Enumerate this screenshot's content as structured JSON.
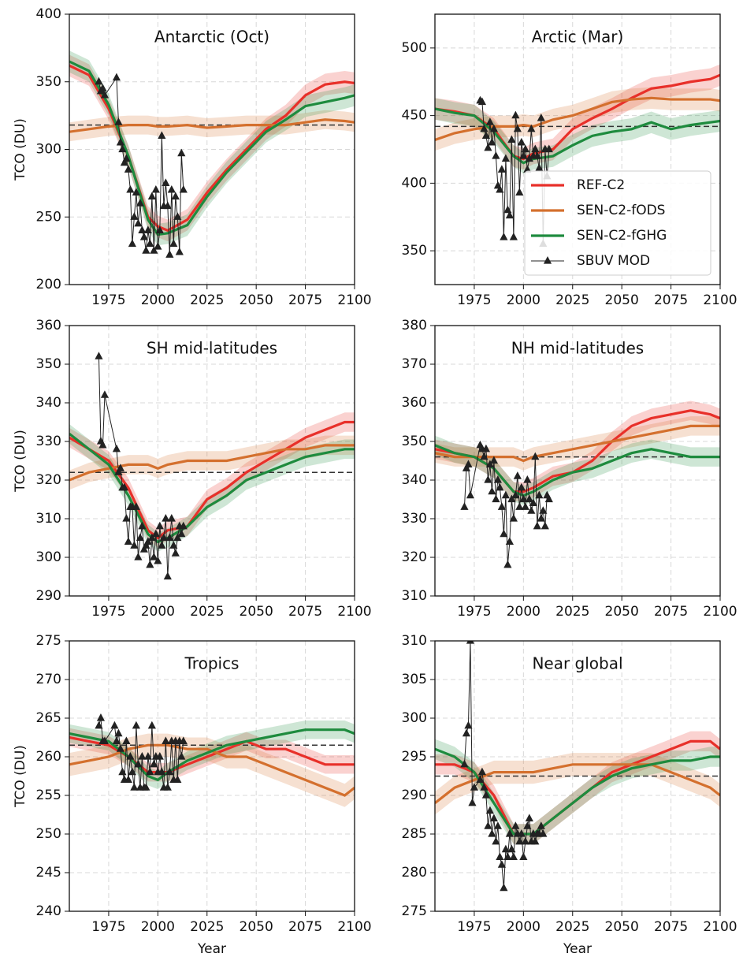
{
  "chart_data": [
    {
      "type": "line",
      "title": "Antarctic (Oct)",
      "ylabel": "TCO (DU)",
      "xlim": [
        1955,
        2100
      ],
      "xticks": [
        1975,
        2000,
        2025,
        2050,
        2075,
        2100
      ],
      "ylim": [
        200,
        400
      ],
      "yticks": [
        200,
        250,
        300,
        350,
        400
      ],
      "grid": true,
      "x": [
        1955,
        1965,
        1975,
        1985,
        1995,
        2000,
        2005,
        2015,
        2025,
        2035,
        2045,
        2055,
        2065,
        2075,
        2085,
        2095,
        2100
      ],
      "series": [
        {
          "color": "#e8302a",
          "spread": 8,
          "values": [
            362,
            355,
            330,
            295,
            250,
            243,
            240,
            248,
            268,
            285,
            300,
            315,
            325,
            340,
            348,
            350,
            349
          ]
        },
        {
          "color": "#d4702e",
          "spread": 7,
          "values": [
            313,
            315,
            317,
            318,
            318,
            317,
            317,
            318,
            316,
            317,
            318,
            318,
            318,
            320,
            322,
            321,
            320
          ]
        },
        {
          "color": "#1e8b3e",
          "spread": 8,
          "values": [
            365,
            358,
            333,
            295,
            248,
            237,
            238,
            244,
            265,
            283,
            298,
            313,
            322,
            332,
            335,
            338,
            340
          ]
        }
      ],
      "obs": {
        "color": "#222222",
        "x": [
          1970,
          1971,
          1972,
          1973,
          1979,
          1980,
          1981,
          1982,
          1983,
          1984,
          1985,
          1986,
          1987,
          1988,
          1989,
          1990,
          1991,
          1992,
          1993,
          1994,
          1995,
          1996,
          1997,
          1998,
          1999,
          2000,
          2001,
          2002,
          2003,
          2004,
          2005,
          2006,
          2007,
          2008,
          2009,
          2010,
          2011,
          2012,
          2013
        ],
        "values": [
          350,
          343,
          345,
          340,
          353,
          320,
          305,
          300,
          290,
          293,
          285,
          270,
          230,
          250,
          268,
          245,
          260,
          240,
          235,
          225,
          240,
          230,
          265,
          225,
          270,
          228,
          240,
          310,
          258,
          275,
          258,
          222,
          270,
          230,
          265,
          250,
          224,
          297,
          270
        ]
      },
      "reference_line": 318
    },
    {
      "type": "line",
      "title": "Arctic (Mar)",
      "xlim": [
        1955,
        2100
      ],
      "xticks": [
        1975,
        2000,
        2025,
        2050,
        2075,
        2100
      ],
      "ylim": [
        325,
        525
      ],
      "yticks": [
        350,
        400,
        450,
        500
      ],
      "grid": true,
      "x": [
        1955,
        1965,
        1975,
        1985,
        1995,
        2000,
        2005,
        2015,
        2025,
        2035,
        2045,
        2055,
        2065,
        2075,
        2085,
        2095,
        2100
      ],
      "series": [
        {
          "name": "REF-C2",
          "color": "#e8302a",
          "spread": 8,
          "values": [
            455,
            453,
            450,
            440,
            420,
            418,
            422,
            425,
            440,
            448,
            455,
            463,
            470,
            472,
            475,
            477,
            480
          ]
        },
        {
          "name": "SEN-C2-fODS",
          "color": "#d4702e",
          "spread": 8,
          "values": [
            432,
            437,
            440,
            442,
            442,
            443,
            442,
            447,
            450,
            455,
            460,
            462,
            463,
            462,
            462,
            462,
            461
          ]
        },
        {
          "name": "SEN-C2-fGHG",
          "color": "#1e8b3e",
          "spread": 8,
          "values": [
            455,
            452,
            450,
            438,
            420,
            415,
            418,
            420,
            428,
            435,
            438,
            440,
            445,
            440,
            443,
            445,
            446
          ]
        }
      ],
      "obs": {
        "name": "SBUV MOD",
        "color": "#222222",
        "x": [
          1978,
          1979,
          1980,
          1981,
          1982,
          1983,
          1984,
          1985,
          1986,
          1987,
          1988,
          1989,
          1990,
          1991,
          1992,
          1993,
          1994,
          1995,
          1996,
          1997,
          1998,
          1999,
          2000,
          2001,
          2002,
          2003,
          2004,
          2005,
          2006,
          2007,
          2008,
          2009,
          2010,
          2011,
          2012,
          2013
        ],
        "values": [
          461,
          460,
          440,
          435,
          426,
          445,
          430,
          440,
          420,
          398,
          395,
          410,
          360,
          418,
          380,
          376,
          432,
          360,
          450,
          440,
          393,
          430,
          420,
          425,
          410,
          418,
          440,
          420,
          425,
          420,
          411,
          448,
          355,
          425,
          405,
          425
        ]
      },
      "reference_line": 442,
      "legend": "lower right"
    },
    {
      "type": "line",
      "title": "SH mid-latitudes",
      "ylabel": "TCO (DU)",
      "xlim": [
        1955,
        2100
      ],
      "xticks": [
        1975,
        2000,
        2025,
        2050,
        2075,
        2100
      ],
      "ylim": [
        290,
        360
      ],
      "yticks": [
        290,
        300,
        310,
        320,
        330,
        340,
        350,
        360
      ],
      "grid": true,
      "x": [
        1955,
        1965,
        1975,
        1985,
        1995,
        2000,
        2005,
        2015,
        2025,
        2035,
        2045,
        2055,
        2065,
        2075,
        2085,
        2095,
        2100
      ],
      "series": [
        {
          "color": "#e8302a",
          "spread": 2.5,
          "values": [
            331,
            328,
            325,
            318,
            307,
            305,
            307,
            308,
            315,
            318,
            322,
            325,
            328,
            331,
            333,
            335,
            335
          ]
        },
        {
          "color": "#d4702e",
          "spread": 2.5,
          "values": [
            320,
            322,
            323,
            324,
            324,
            323,
            324,
            325,
            325,
            325,
            326,
            327,
            328,
            328,
            329,
            329,
            329
          ]
        },
        {
          "color": "#1e8b3e",
          "spread": 2.5,
          "values": [
            332,
            328,
            324,
            316,
            306,
            304,
            305,
            308,
            313,
            316,
            320,
            322,
            324,
            326,
            327,
            328,
            328
          ]
        }
      ],
      "obs": {
        "color": "#222222",
        "x": [
          1970,
          1971,
          1972,
          1973,
          1979,
          1980,
          1981,
          1982,
          1983,
          1984,
          1985,
          1986,
          1987,
          1988,
          1989,
          1990,
          1991,
          1992,
          1993,
          1994,
          1995,
          1996,
          1997,
          1998,
          1999,
          2000,
          2001,
          2002,
          2003,
          2004,
          2005,
          2006,
          2007,
          2008,
          2009,
          2010,
          2011,
          2012,
          2013
        ],
        "values": [
          352,
          330,
          329,
          342,
          328,
          322,
          323,
          318,
          318,
          310,
          304,
          313,
          313,
          303,
          313,
          300,
          305,
          308,
          302,
          303,
          304,
          298,
          305,
          300,
          306,
          299,
          308,
          303,
          305,
          310,
          295,
          305,
          310,
          303,
          301,
          305,
          308,
          306,
          308
        ]
      },
      "reference_line": 322
    },
    {
      "type": "line",
      "title": "NH mid-latitudes",
      "xlim": [
        1955,
        2100
      ],
      "xticks": [
        1975,
        2000,
        2025,
        2050,
        2075,
        2100
      ],
      "ylim": [
        310,
        380
      ],
      "yticks": [
        310,
        320,
        330,
        340,
        350,
        360,
        370,
        380
      ],
      "grid": true,
      "x": [
        1955,
        1965,
        1975,
        1985,
        1995,
        2000,
        2005,
        2015,
        2025,
        2035,
        2045,
        2055,
        2065,
        2075,
        2085,
        2095,
        2100
      ],
      "series": [
        {
          "color": "#e8302a",
          "spread": 2.5,
          "values": [
            348,
            347,
            346,
            343,
            337,
            337,
            338,
            341,
            342,
            345,
            350,
            354,
            356,
            357,
            358,
            357,
            356
          ]
        },
        {
          "color": "#d4702e",
          "spread": 2.5,
          "values": [
            347,
            346,
            346,
            346,
            346,
            345,
            346,
            347,
            348,
            349,
            350,
            351,
            352,
            353,
            354,
            354,
            354
          ]
        },
        {
          "color": "#1e8b3e",
          "spread": 2.5,
          "values": [
            349,
            347,
            346,
            343,
            337,
            336,
            337,
            340,
            342,
            343,
            345,
            347,
            348,
            347,
            346,
            346,
            346
          ]
        }
      ],
      "obs": {
        "color": "#222222",
        "x": [
          1970,
          1971,
          1972,
          1973,
          1978,
          1979,
          1980,
          1981,
          1982,
          1983,
          1984,
          1985,
          1986,
          1987,
          1988,
          1989,
          1990,
          1991,
          1992,
          1993,
          1994,
          1995,
          1996,
          1997,
          1998,
          1999,
          2000,
          2001,
          2002,
          2003,
          2004,
          2005,
          2006,
          2007,
          2008,
          2009,
          2010,
          2011,
          2012,
          2013
        ],
        "values": [
          333,
          343,
          344,
          336,
          349,
          348,
          346,
          348,
          340,
          344,
          337,
          345,
          335,
          340,
          338,
          333,
          326,
          336,
          318,
          324,
          335,
          330,
          336,
          341,
          333,
          338,
          335,
          333,
          340,
          335,
          332,
          334,
          346,
          328,
          336,
          330,
          332,
          328,
          336,
          335
        ]
      },
      "reference_line": 346
    },
    {
      "type": "line",
      "title": "Tropics",
      "ylabel": "TCO (DU)",
      "xlabel": "Year",
      "xlim": [
        1955,
        2100
      ],
      "xticks": [
        1975,
        2000,
        2025,
        2050,
        2075,
        2100
      ],
      "ylim": [
        240,
        275
      ],
      "yticks": [
        240,
        245,
        250,
        255,
        260,
        265,
        270,
        275
      ],
      "grid": true,
      "x": [
        1955,
        1965,
        1975,
        1985,
        1995,
        2000,
        2005,
        2015,
        2025,
        2035,
        2045,
        2055,
        2065,
        2075,
        2085,
        2095,
        2100
      ],
      "series": [
        {
          "color": "#e8302a",
          "spread": 1.2,
          "values": [
            262.5,
            262,
            261.5,
            260,
            258,
            258,
            258,
            259,
            260,
            261,
            262,
            261,
            261,
            260,
            259,
            259,
            259
          ]
        },
        {
          "color": "#d4702e",
          "spread": 1.5,
          "values": [
            259,
            259.5,
            260,
            261,
            261.5,
            261.5,
            261.5,
            261,
            261,
            260,
            260,
            259,
            258,
            257,
            256,
            255,
            256
          ]
        },
        {
          "color": "#1e8b3e",
          "spread": 1.2,
          "values": [
            263,
            262.5,
            262,
            260,
            257.5,
            257,
            258,
            259.5,
            260.5,
            261.5,
            262,
            262.5,
            263,
            263.5,
            263.5,
            263.5,
            263
          ]
        }
      ],
      "obs": {
        "color": "#222222",
        "x": [
          1970,
          1971,
          1972,
          1973,
          1978,
          1979,
          1980,
          1981,
          1982,
          1983,
          1984,
          1985,
          1986,
          1987,
          1988,
          1989,
          1990,
          1991,
          1992,
          1993,
          1994,
          1995,
          1996,
          1997,
          1998,
          1999,
          2000,
          2001,
          2002,
          2003,
          2004,
          2005,
          2006,
          2007,
          2008,
          2009,
          2010,
          2011,
          2012,
          2013
        ],
        "values": [
          264,
          265,
          262,
          262,
          264,
          262,
          263,
          261,
          258,
          257,
          262,
          257,
          260,
          258,
          256,
          264,
          259,
          256,
          260,
          256,
          256,
          260,
          258,
          264,
          259,
          260,
          258,
          260,
          258,
          256,
          262,
          256,
          258,
          262,
          257,
          262,
          257,
          262,
          260,
          262
        ]
      },
      "reference_line": 261.5
    },
    {
      "type": "line",
      "title": "Near global",
      "xlabel": "Year",
      "xlim": [
        1955,
        2100
      ],
      "xticks": [
        1975,
        2000,
        2025,
        2050,
        2075,
        2100
      ],
      "ylim": [
        275,
        310
      ],
      "yticks": [
        275,
        280,
        285,
        290,
        295,
        300,
        305,
        310
      ],
      "grid": true,
      "x": [
        1955,
        1965,
        1975,
        1985,
        1995,
        2000,
        2005,
        2015,
        2025,
        2035,
        2045,
        2055,
        2065,
        2075,
        2085,
        2095,
        2100
      ],
      "series": [
        {
          "color": "#e8302a",
          "spread": 1.3,
          "values": [
            294,
            294,
            293,
            290,
            285,
            285,
            285,
            287,
            289,
            291,
            293,
            294,
            295,
            296,
            297,
            297,
            296
          ]
        },
        {
          "color": "#d4702e",
          "spread": 1.5,
          "values": [
            289,
            291,
            292,
            293,
            293,
            293,
            293,
            293.5,
            294,
            294,
            294,
            294,
            294,
            293,
            292,
            291,
            290
          ]
        },
        {
          "color": "#1e8b3e",
          "spread": 1.3,
          "values": [
            296,
            295,
            293,
            289,
            285,
            285,
            285,
            287,
            289,
            291,
            292.5,
            293.5,
            294,
            294.5,
            294.5,
            295,
            295
          ]
        }
      ],
      "obs": {
        "color": "#222222",
        "x": [
          1970,
          1971,
          1972,
          1973,
          1974,
          1975,
          1978,
          1979,
          1980,
          1981,
          1982,
          1983,
          1984,
          1985,
          1986,
          1987,
          1988,
          1989,
          1990,
          1991,
          1992,
          1993,
          1994,
          1995,
          1996,
          1997,
          1998,
          1999,
          2000,
          2001,
          2002,
          2003,
          2004,
          2005,
          2006,
          2007,
          2008,
          2009,
          2010
        ],
        "values": [
          294,
          298,
          299,
          310,
          289,
          291,
          292,
          293,
          291,
          290,
          286,
          288,
          285,
          287,
          284,
          286,
          282,
          281,
          278,
          283,
          282,
          285,
          283,
          282,
          286,
          285,
          284,
          285,
          282,
          284,
          286,
          287,
          284,
          285,
          284,
          285,
          285,
          286,
          285
        ]
      },
      "reference_line": 292.5
    }
  ]
}
